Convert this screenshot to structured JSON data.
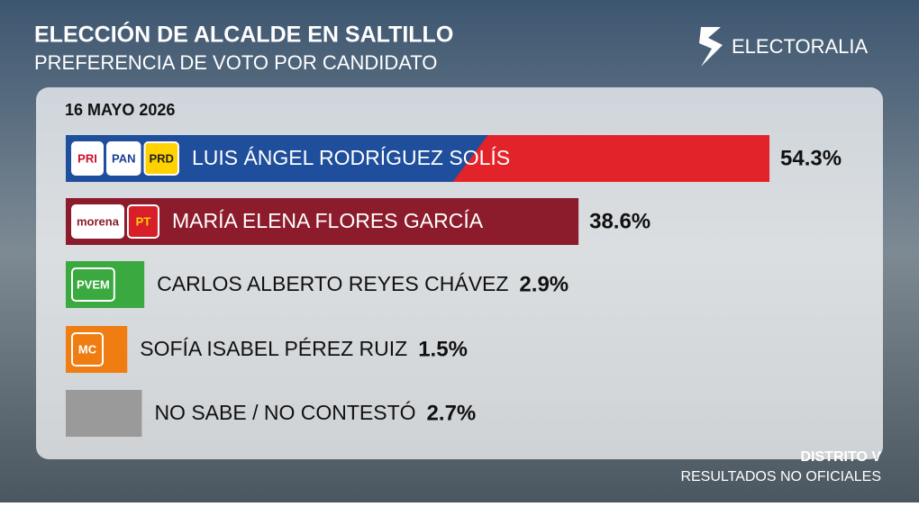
{
  "chart_data": {
    "type": "hbar",
    "title": "ELECCIÓN DE ALCALDE EN SALTILLO",
    "subtitle": "PREFERENCIA DE VOTO POR CANDIDATO",
    "brand": "ELECTORALIA",
    "date": "16 MAYO 2026",
    "footer": [
      "DISTRITO V",
      "RESULTADOS NO OFICIALES"
    ],
    "categories": [
      "LUIS ÁNGEL RODRÍGUEZ SOLÍS",
      "MARÍA ELENA FLORES GARCÍA",
      "CARLOS ALBERTO REYES CHÁVEZ",
      "SOFÍA ISABEL PÉREZ RUIZ",
      "NO SABE / NO CONTESTÓ"
    ],
    "values": [
      54.3,
      38.6,
      2.9,
      1.5,
      2.7
    ],
    "value_labels": [
      "54.3%",
      "38.6%",
      "2.9%",
      "1.5%",
      "2.7%"
    ],
    "colors": [
      "#e3232a",
      "#8c1c2c",
      "#3aa93f",
      "#f07d12",
      "#9a9a9a"
    ],
    "logos": [
      [
        {
          "label": "PRI",
          "fill": "#ffffff",
          "color": "#c8102e"
        },
        {
          "label": "PAN",
          "fill": "#ffffff",
          "color": "#1c3f94"
        },
        {
          "label": "PRD",
          "fill": "#ffd200",
          "color": "#222222"
        }
      ],
      [
        {
          "label": "morena",
          "fill": "#ffffff",
          "color": "#8c1c2c"
        },
        {
          "label": "PT",
          "fill": "#d81e28",
          "color": "#ffd200"
        }
      ],
      [
        {
          "label": "PVEM",
          "fill": "#3aa93f",
          "color": "#ffffff"
        }
      ],
      [
        {
          "label": "MC",
          "fill": "#f07d12",
          "color": "#ffffff"
        }
      ],
      []
    ]
  }
}
